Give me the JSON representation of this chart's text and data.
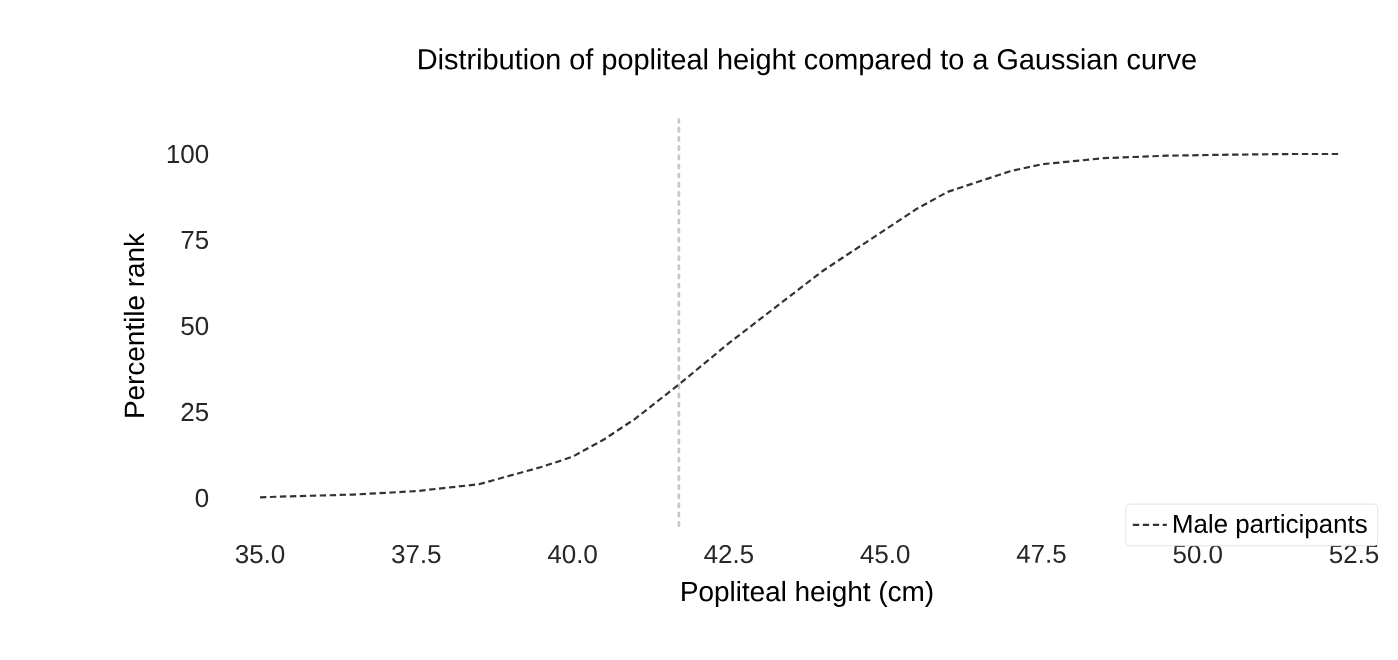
{
  "chart_data": {
    "type": "line",
    "title": "Distribution of popliteal height compared to a Gaussian curve",
    "xlabel": "Popliteal height (cm)",
    "ylabel": "Percentile rank",
    "x": [
      35.0,
      35.5,
      36.5,
      37.5,
      38.5,
      39.5,
      40.0,
      40.5,
      41.0,
      41.7,
      42.5,
      43.0,
      43.5,
      44.0,
      44.5,
      45.0,
      45.5,
      46.0,
      46.5,
      47.0,
      47.5,
      48.5,
      49.5,
      50.5,
      51.5,
      52.3
    ],
    "series": [
      {
        "name": "Male participants",
        "color": "#333333",
        "line_style": "dashed",
        "values": [
          0.2,
          0.5,
          1,
          2,
          4,
          9,
          12,
          17,
          23,
          33,
          45,
          52,
          59,
          66,
          72,
          78,
          84,
          89,
          92,
          95,
          97,
          98.8,
          99.5,
          99.8,
          100,
          100
        ]
      }
    ],
    "xticks": [
      {
        "value": 35,
        "label": "35.0"
      },
      {
        "value": 37.5,
        "label": "37.5"
      },
      {
        "value": 40,
        "label": "40.0"
      },
      {
        "value": 42.5,
        "label": "42.5"
      },
      {
        "value": 45,
        "label": "45.0"
      },
      {
        "value": 47.5,
        "label": "47.5"
      },
      {
        "value": 50,
        "label": "50.0"
      },
      {
        "value": 52.5,
        "label": "52.5"
      }
    ],
    "xlim": [
      35,
      52.5
    ],
    "ylim": [
      0,
      100
    ],
    "yticks": [
      0,
      25,
      50,
      75,
      100
    ],
    "ref_lines": [
      {
        "axis": "x",
        "value": 41.7,
        "color": "#c8c8c8",
        "line_style": "dotted"
      }
    ],
    "legend": "bottom right"
  }
}
